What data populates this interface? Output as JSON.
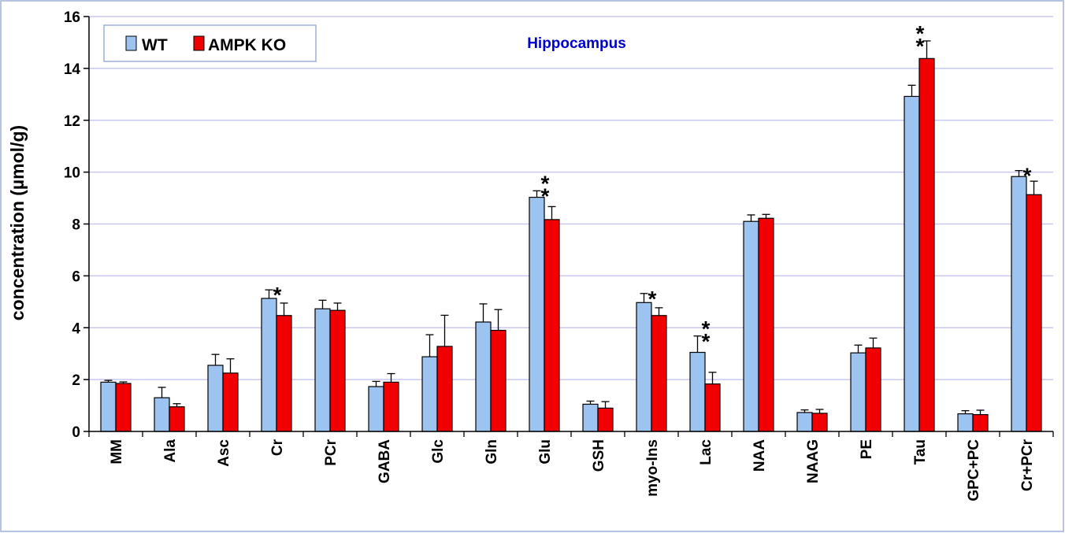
{
  "chart_data": {
    "type": "bar",
    "title": "Hippocampus",
    "xlabel": "",
    "ylabel": "concentration (µmol/g)",
    "ylim": [
      0,
      16
    ],
    "yticks": [
      "0",
      "2",
      "4",
      "6",
      "8",
      "10",
      "12",
      "14",
      "16"
    ],
    "grid": true,
    "legend_position": "top-left",
    "categories": [
      "MM",
      "Ala",
      "Asc",
      "Cr",
      "PCr",
      "GABA",
      "Glc",
      "Gln",
      "Glu",
      "GSH",
      "myo-Ins",
      "Lac",
      "NAA",
      "NAAG",
      "PE",
      "Tau",
      "GPC+PC",
      "Cr+PCr"
    ],
    "series": [
      {
        "name": "WT",
        "color": "#9DC3F0",
        "values": [
          1.9,
          1.3,
          2.55,
          5.13,
          4.73,
          1.73,
          2.88,
          4.22,
          9.03,
          1.05,
          4.97,
          3.05,
          8.1,
          0.73,
          3.03,
          12.92,
          0.68,
          9.83
        ],
        "errors": [
          0.07,
          0.4,
          0.42,
          0.33,
          0.33,
          0.2,
          0.85,
          0.7,
          0.25,
          0.12,
          0.35,
          0.63,
          0.25,
          0.1,
          0.3,
          0.43,
          0.12,
          0.23
        ]
      },
      {
        "name": "AMPK KO",
        "color": "#F00000",
        "values": [
          1.85,
          0.95,
          2.25,
          4.47,
          4.67,
          1.9,
          3.28,
          3.9,
          8.17,
          0.9,
          4.47,
          1.83,
          8.22,
          0.7,
          3.22,
          14.38,
          0.65,
          9.13
        ],
        "errors": [
          0.06,
          0.12,
          0.55,
          0.48,
          0.28,
          0.33,
          1.2,
          0.8,
          0.5,
          0.25,
          0.3,
          0.45,
          0.15,
          0.15,
          0.38,
          0.68,
          0.17,
          0.52
        ]
      }
    ],
    "annotations": [
      {
        "category_index": 3,
        "text": "*"
      },
      {
        "category_index": 8,
        "text": "**"
      },
      {
        "category_index": 10,
        "text": "*"
      },
      {
        "category_index": 11,
        "text": "**"
      },
      {
        "category_index": 15,
        "text": "**"
      },
      {
        "category_index": 17,
        "text": "*"
      }
    ]
  },
  "colors": {
    "title": "#0000CC",
    "grid": "#C8C8F0",
    "frame": "#9BB0D8"
  }
}
